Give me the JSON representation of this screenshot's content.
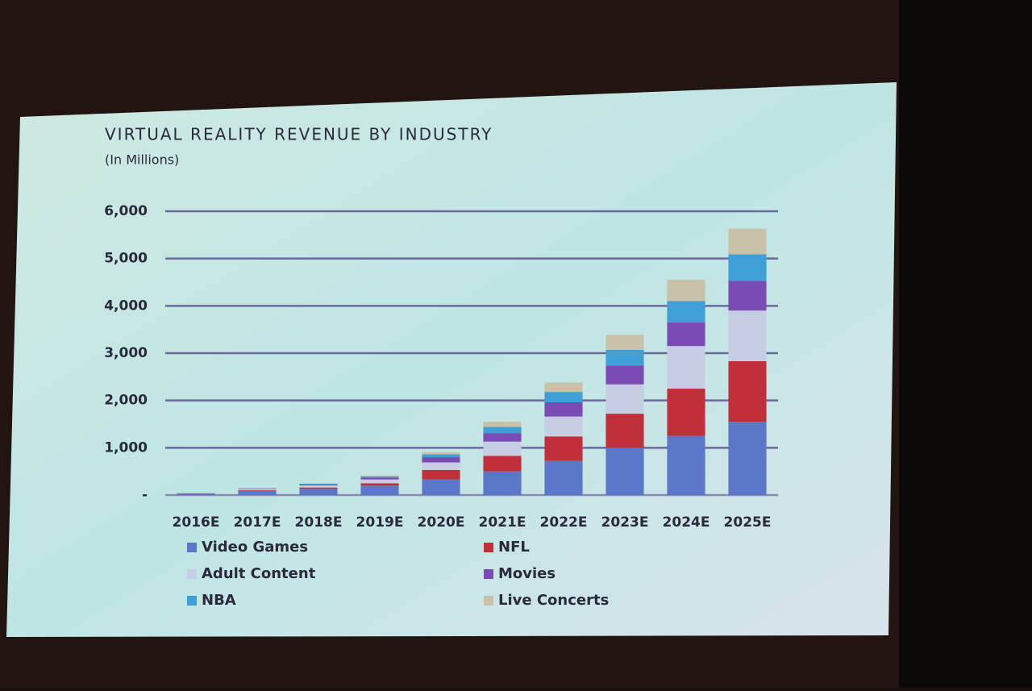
{
  "chart_data": {
    "type": "stacked-bar",
    "title": "VIRTUAL REALITY REVENUE BY INDUSTRY",
    "subtitle": "(In Millions)",
    "categories": [
      "2016E",
      "2017E",
      "2018E",
      "2019E",
      "2020E",
      "2021E",
      "2022E",
      "2023E",
      "2024E",
      "2025E"
    ],
    "series": [
      {
        "name": "Video Games",
        "color": "#5b77c9",
        "values": [
          30,
          90,
          130,
          200,
          330,
          500,
          720,
          1000,
          1250,
          1550
        ]
      },
      {
        "name": "NFL",
        "color": "#c0303a",
        "values": [
          5,
          15,
          30,
          50,
          200,
          330,
          520,
          720,
          1000,
          1280
        ]
      },
      {
        "name": "Adult Content",
        "color": "#c7cde3",
        "values": [
          10,
          25,
          45,
          80,
          160,
          300,
          420,
          620,
          900,
          1070
        ]
      },
      {
        "name": "Movies",
        "color": "#7b4bb5",
        "values": [
          3,
          10,
          20,
          40,
          110,
          180,
          300,
          400,
          500,
          630
        ]
      },
      {
        "name": "NBA",
        "color": "#3f9fd6",
        "values": [
          2,
          5,
          15,
          25,
          60,
          130,
          220,
          330,
          450,
          560
        ]
      },
      {
        "name": "Live Concerts",
        "color": "#c9c2a8",
        "values": [
          1,
          5,
          10,
          20,
          50,
          110,
          200,
          320,
          450,
          540
        ]
      }
    ],
    "ylim": [
      0,
      6000
    ],
    "yticks": [
      {
        "value": 0,
        "label": "-"
      },
      {
        "value": 1000,
        "label": "1,000"
      },
      {
        "value": 2000,
        "label": "2,000"
      },
      {
        "value": 3000,
        "label": "3,000"
      },
      {
        "value": 4000,
        "label": "4,000"
      },
      {
        "value": 5000,
        "label": "5,000"
      },
      {
        "value": 6000,
        "label": "6,000"
      }
    ],
    "grid": true
  }
}
